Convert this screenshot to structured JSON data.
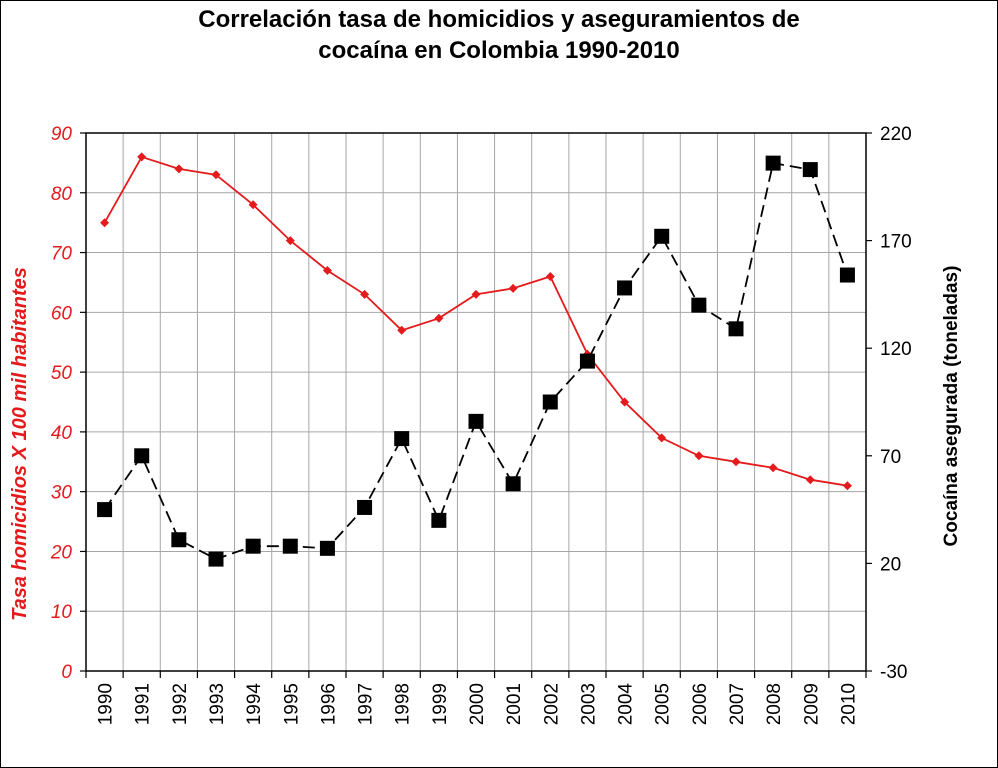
{
  "chart_data": {
    "type": "line",
    "title": "Correlación tasa de homicidios y aseguramientos de\ncocaína en Colombia 1990-2010",
    "x": [
      "1990",
      "1991",
      "1992",
      "1993",
      "1994",
      "1995",
      "1996",
      "1997",
      "1998",
      "1999",
      "2000",
      "2001",
      "2002",
      "2003",
      "2004",
      "2005",
      "2006",
      "2007",
      "2008",
      "2009",
      "2010"
    ],
    "ylabel_left": "Tasa homicidios X 100 mil habitantes",
    "ylabel_right": "Cocaína asegurada (toneladas)",
    "ylim_left": [
      0,
      90
    ],
    "ylim_right": [
      -30,
      220
    ],
    "yticks_left": [
      0,
      10,
      20,
      30,
      40,
      50,
      60,
      70,
      80,
      90
    ],
    "yticks_right": [
      -30,
      20,
      70,
      120,
      170,
      220
    ],
    "grid": true,
    "series": [
      {
        "axis": "left",
        "color": "#e41a1c",
        "style": "solid",
        "marker": "diamond",
        "values": [
          75,
          86,
          84,
          83,
          78,
          72,
          67,
          63,
          57,
          59,
          63,
          64,
          66,
          53,
          45,
          39,
          36,
          35,
          34,
          32,
          31
        ]
      },
      {
        "axis": "right",
        "color": "#000000",
        "style": "dashed",
        "marker": "square",
        "values": [
          45,
          70,
          31,
          22,
          28,
          28,
          27,
          46,
          78,
          40,
          86,
          57,
          95,
          114,
          148,
          172,
          140,
          129,
          206,
          203,
          154
        ]
      }
    ]
  }
}
